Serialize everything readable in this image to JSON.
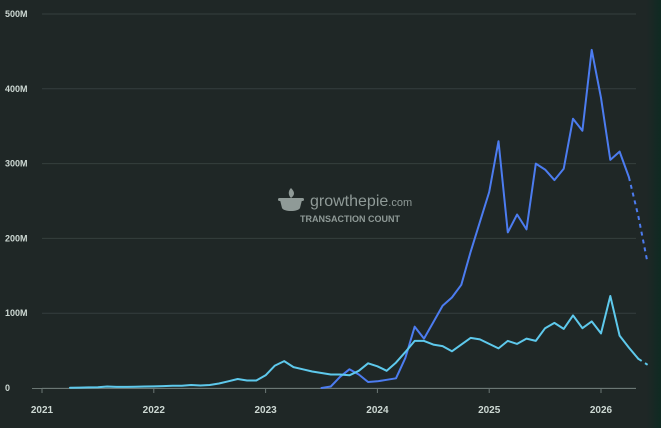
{
  "watermark": {
    "brand_main": "growthepie",
    "brand_suffix": ".com",
    "subtitle": "TRANSACTION COUNT",
    "logo_icon": "pie-logo-icon"
  },
  "chart_data": {
    "type": "line",
    "title": "",
    "xlabel": "",
    "ylabel": "",
    "ylim": [
      0,
      500
    ],
    "y_unit": "M",
    "y_ticks": [
      "0",
      "100M",
      "200M",
      "300M",
      "400M",
      "500M"
    ],
    "x_ticks": [
      "2021",
      "2022",
      "2023",
      "2024",
      "2025",
      "2026"
    ],
    "xlim": [
      "2021-01",
      "2026-05"
    ],
    "grid": true,
    "legend": "none",
    "series": [
      {
        "color": "#4c7cf0",
        "projected_from": "2026-04",
        "points": [
          [
            "2023-07",
            0
          ],
          [
            "2023-08",
            2
          ],
          [
            "2023-09",
            15
          ],
          [
            "2023-10",
            25
          ],
          [
            "2023-11",
            18
          ],
          [
            "2023-12",
            8
          ],
          [
            "2024-01",
            9
          ],
          [
            "2024-02",
            11
          ],
          [
            "2024-03",
            13
          ],
          [
            "2024-04",
            40
          ],
          [
            "2024-05",
            82
          ],
          [
            "2024-06",
            66
          ],
          [
            "2024-07",
            88
          ],
          [
            "2024-08",
            110
          ],
          [
            "2024-09",
            121
          ],
          [
            "2024-10",
            138
          ],
          [
            "2024-11",
            182
          ],
          [
            "2024-12",
            222
          ],
          [
            "2025-01",
            262
          ],
          [
            "2025-02",
            330
          ],
          [
            "2025-03",
            208
          ],
          [
            "2025-04",
            232
          ],
          [
            "2025-05",
            212
          ],
          [
            "2025-06",
            300
          ],
          [
            "2025-07",
            292
          ],
          [
            "2025-08",
            278
          ],
          [
            "2025-09",
            293
          ],
          [
            "2025-10",
            360
          ],
          [
            "2025-11",
            344
          ],
          [
            "2025-12",
            452
          ],
          [
            "2026-01",
            388
          ],
          [
            "2026-02",
            305
          ],
          [
            "2026-03",
            316
          ],
          [
            "2026-04",
            282
          ],
          [
            "2026-05",
            230
          ],
          [
            "2026-06",
            167
          ]
        ]
      },
      {
        "color": "#5ec9ec",
        "projected_from": "2026-05",
        "points": [
          [
            "2021-04",
            0.4
          ],
          [
            "2021-05",
            0.6
          ],
          [
            "2021-06",
            0.8
          ],
          [
            "2021-07",
            1.0
          ],
          [
            "2021-08",
            2.0
          ],
          [
            "2021-09",
            1.5
          ],
          [
            "2021-10",
            1.5
          ],
          [
            "2021-11",
            1.8
          ],
          [
            "2021-12",
            2.0
          ],
          [
            "2022-01",
            2.2
          ],
          [
            "2022-02",
            2.6
          ],
          [
            "2022-03",
            3.0
          ],
          [
            "2022-04",
            3.0
          ],
          [
            "2022-05",
            4.0
          ],
          [
            "2022-06",
            3.4
          ],
          [
            "2022-07",
            4.0
          ],
          [
            "2022-08",
            6.0
          ],
          [
            "2022-09",
            9.0
          ],
          [
            "2022-10",
            12.0
          ],
          [
            "2022-11",
            10.0
          ],
          [
            "2022-12",
            10.0
          ],
          [
            "2023-01",
            17.0
          ],
          [
            "2023-02",
            30.0
          ],
          [
            "2023-03",
            36.0
          ],
          [
            "2023-04",
            28.0
          ],
          [
            "2023-05",
            25.0
          ],
          [
            "2023-06",
            22.0
          ],
          [
            "2023-07",
            20.0
          ],
          [
            "2023-08",
            18.0
          ],
          [
            "2023-09",
            18.0
          ],
          [
            "2023-10",
            17.0
          ],
          [
            "2023-11",
            23.0
          ],
          [
            "2023-12",
            33.0
          ],
          [
            "2024-01",
            29.0
          ],
          [
            "2024-02",
            23.0
          ],
          [
            "2024-03",
            34.0
          ],
          [
            "2024-04",
            48.0
          ],
          [
            "2024-05",
            63.0
          ],
          [
            "2024-06",
            63.0
          ],
          [
            "2024-07",
            58.0
          ],
          [
            "2024-08",
            56.0
          ],
          [
            "2024-09",
            49.0
          ],
          [
            "2024-10",
            58.0
          ],
          [
            "2024-11",
            67.0
          ],
          [
            "2024-12",
            65.0
          ],
          [
            "2025-01",
            59.0
          ],
          [
            "2025-02",
            53.0
          ],
          [
            "2025-03",
            63.0
          ],
          [
            "2025-04",
            59.0
          ],
          [
            "2025-05",
            66.0
          ],
          [
            "2025-06",
            63.0
          ],
          [
            "2025-07",
            80.0
          ],
          [
            "2025-08",
            87.0
          ],
          [
            "2025-09",
            79.0
          ],
          [
            "2025-10",
            97.0
          ],
          [
            "2025-11",
            80.0
          ],
          [
            "2025-12",
            89.0
          ],
          [
            "2026-01",
            73.0
          ],
          [
            "2026-02",
            123.0
          ],
          [
            "2026-03",
            70.0
          ],
          [
            "2026-04",
            54.0
          ],
          [
            "2026-05",
            39.0
          ],
          [
            "2026-06",
            31.0
          ]
        ]
      }
    ]
  }
}
